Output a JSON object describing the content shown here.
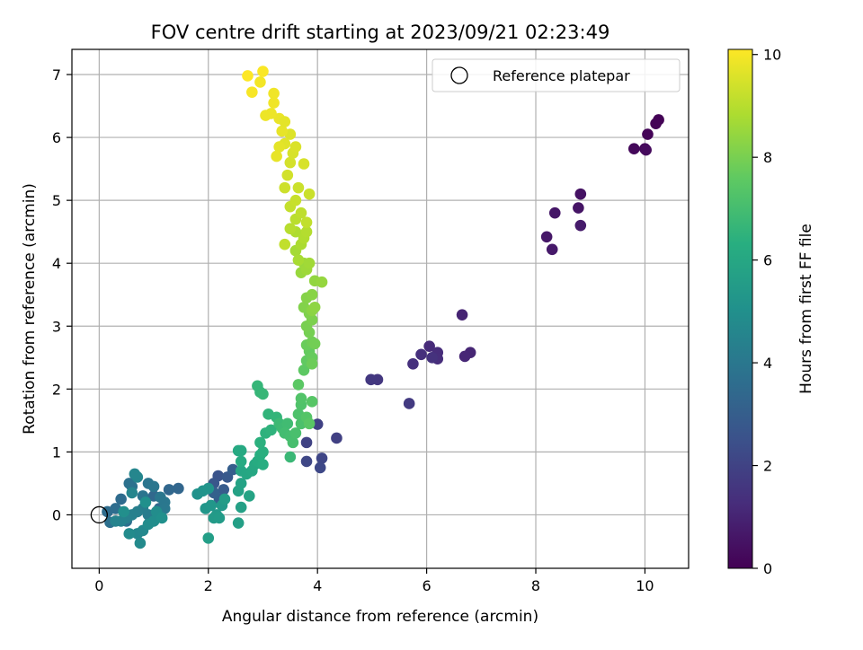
{
  "chart_data": {
    "type": "scatter",
    "title": "FOV centre drift starting at 2023/09/21 02:23:49",
    "xlabel": "Angular distance from reference (arcmin)",
    "ylabel": "Rotation from reference (arcmin)",
    "xlim": [
      -0.5,
      10.8
    ],
    "ylim": [
      -0.85,
      7.4
    ],
    "xticks": [
      0,
      2,
      4,
      6,
      8,
      10
    ],
    "yticks": [
      0,
      1,
      2,
      3,
      4,
      5,
      6,
      7
    ],
    "grid": true,
    "legend": {
      "placement": "top-right",
      "entries": [
        {
          "label": "Reference platepar",
          "marker": "open-circle"
        }
      ]
    },
    "reference_point": {
      "x": 0,
      "y": 0
    },
    "colorbar": {
      "label": "Hours from first FF file",
      "min": 0,
      "max": 10.1,
      "ticks": [
        0,
        2,
        4,
        6,
        8,
        10
      ],
      "colormap": "viridis"
    },
    "points": [
      [
        10.25,
        6.28,
        0.05
      ],
      [
        10.2,
        6.22,
        0.08
      ],
      [
        10.05,
        6.05,
        0.1
      ],
      [
        10.0,
        5.82,
        0.15
      ],
      [
        9.8,
        5.82,
        0.2
      ],
      [
        10.02,
        5.8,
        0.25
      ],
      [
        8.82,
        5.1,
        0.5
      ],
      [
        8.78,
        4.88,
        0.55
      ],
      [
        8.35,
        4.8,
        0.6
      ],
      [
        8.2,
        4.42,
        0.65
      ],
      [
        8.3,
        4.22,
        0.7
      ],
      [
        8.82,
        4.6,
        0.75
      ],
      [
        6.65,
        3.18,
        1.0
      ],
      [
        6.8,
        2.58,
        1.05
      ],
      [
        6.7,
        2.52,
        1.1
      ],
      [
        6.05,
        2.68,
        1.2
      ],
      [
        6.2,
        2.58,
        1.25
      ],
      [
        6.2,
        2.48,
        1.3
      ],
      [
        5.9,
        2.55,
        1.35
      ],
      [
        5.75,
        2.4,
        1.4
      ],
      [
        6.1,
        2.5,
        1.45
      ],
      [
        5.1,
        2.15,
        1.6
      ],
      [
        4.98,
        2.15,
        1.65
      ],
      [
        5.68,
        1.77,
        1.7
      ],
      [
        4.35,
        1.22,
        1.9
      ],
      [
        4.0,
        1.44,
        1.95
      ],
      [
        3.8,
        1.15,
        2.0
      ],
      [
        4.08,
        0.9,
        2.1
      ],
      [
        3.8,
        0.85,
        2.15
      ],
      [
        4.05,
        0.75,
        2.2
      ],
      [
        2.18,
        0.62,
        2.6
      ],
      [
        2.1,
        0.5,
        2.7
      ],
      [
        2.35,
        0.6,
        2.8
      ],
      [
        2.28,
        0.4,
        2.9
      ],
      [
        2.45,
        0.72,
        3.0
      ],
      [
        2.2,
        0.25,
        3.0
      ],
      [
        2.1,
        0.35,
        3.1
      ],
      [
        1.45,
        0.42,
        3.3
      ],
      [
        1.28,
        0.4,
        3.35
      ],
      [
        1.0,
        0.3,
        3.4
      ],
      [
        1.1,
        0.1,
        3.45
      ],
      [
        0.4,
        0.25,
        3.5
      ],
      [
        0.15,
        0.05,
        3.55
      ],
      [
        0.3,
        0.1,
        3.6
      ],
      [
        0.5,
        -0.1,
        3.65
      ],
      [
        0.2,
        -0.12,
        3.7
      ],
      [
        0.55,
        0.5,
        3.75
      ],
      [
        0.6,
        0.45,
        3.8
      ],
      [
        0.8,
        0.3,
        3.85
      ],
      [
        0.9,
        0.5,
        3.9
      ],
      [
        1.0,
        0.45,
        3.95
      ],
      [
        1.12,
        0.28,
        4.0
      ],
      [
        1.2,
        0.2,
        4.0
      ],
      [
        1.2,
        0.1,
        4.05
      ],
      [
        1.1,
        0.0,
        4.1
      ],
      [
        1.0,
        -0.05,
        4.15
      ],
      [
        0.9,
        0.0,
        4.2
      ],
      [
        0.8,
        0.1,
        4.25
      ],
      [
        0.7,
        0.05,
        4.3
      ],
      [
        0.6,
        0.0,
        4.35
      ],
      [
        0.5,
        -0.05,
        4.4
      ],
      [
        0.4,
        -0.1,
        4.45
      ],
      [
        0.3,
        -0.1,
        4.5
      ],
      [
        0.6,
        0.35,
        4.55
      ],
      [
        0.7,
        0.6,
        4.6
      ],
      [
        0.65,
        0.65,
        4.6
      ],
      [
        0.7,
        -0.3,
        4.65
      ],
      [
        0.8,
        -0.25,
        4.7
      ],
      [
        0.75,
        -0.45,
        4.75
      ],
      [
        0.55,
        -0.3,
        4.8
      ],
      [
        0.9,
        -0.15,
        4.85
      ],
      [
        1.0,
        -0.1,
        4.9
      ],
      [
        1.05,
        0.05,
        4.9
      ],
      [
        0.45,
        0.05,
        4.95
      ],
      [
        0.85,
        0.2,
        5.0
      ],
      [
        1.15,
        -0.05,
        5.0
      ],
      [
        1.8,
        0.33,
        5.1
      ],
      [
        1.9,
        0.38,
        5.15
      ],
      [
        2.0,
        0.42,
        5.2
      ],
      [
        1.95,
        0.1,
        5.25
      ],
      [
        2.05,
        0.15,
        5.3
      ],
      [
        2.15,
        0.0,
        5.35
      ],
      [
        2.25,
        0.15,
        5.4
      ],
      [
        2.1,
        -0.05,
        5.45
      ],
      [
        2.2,
        -0.05,
        5.5
      ],
      [
        2.3,
        0.25,
        5.55
      ],
      [
        2.0,
        -0.37,
        5.6
      ],
      [
        2.55,
        -0.13,
        5.65
      ],
      [
        2.6,
        0.12,
        5.7
      ],
      [
        2.55,
        0.38,
        5.75
      ],
      [
        2.6,
        0.5,
        5.8
      ],
      [
        2.75,
        0.3,
        5.85
      ],
      [
        2.6,
        0.7,
        5.9
      ],
      [
        2.7,
        0.65,
        5.95
      ],
      [
        2.8,
        0.7,
        6.0
      ],
      [
        2.85,
        0.8,
        6.05
      ],
      [
        2.55,
        1.02,
        6.1
      ],
      [
        2.6,
        1.02,
        6.1
      ],
      [
        2.6,
        0.85,
        6.15
      ],
      [
        2.9,
        0.85,
        6.2
      ],
      [
        3.0,
        0.8,
        6.25
      ],
      [
        2.95,
        0.95,
        6.3
      ],
      [
        3.0,
        1.0,
        6.35
      ],
      [
        2.95,
        1.15,
        6.4
      ],
      [
        3.05,
        1.3,
        6.45
      ],
      [
        3.15,
        1.35,
        6.5
      ],
      [
        3.1,
        1.6,
        6.55
      ],
      [
        3.25,
        1.55,
        6.6
      ],
      [
        2.9,
        2.05,
        6.65
      ],
      [
        2.95,
        1.95,
        6.65
      ],
      [
        3.0,
        1.92,
        6.7
      ],
      [
        3.5,
        0.92,
        6.75
      ],
      [
        3.3,
        1.45,
        6.8
      ],
      [
        3.35,
        1.38,
        6.85
      ],
      [
        3.45,
        1.45,
        6.9
      ],
      [
        3.4,
        1.3,
        6.95
      ],
      [
        3.5,
        1.25,
        7.0
      ],
      [
        3.55,
        1.15,
        7.05
      ],
      [
        3.6,
        1.3,
        7.1
      ],
      [
        3.7,
        1.45,
        7.15
      ],
      [
        3.65,
        1.6,
        7.2
      ],
      [
        3.7,
        1.75,
        7.25
      ],
      [
        3.7,
        1.85,
        7.3
      ],
      [
        3.8,
        1.55,
        7.35
      ],
      [
        3.9,
        1.8,
        7.4
      ],
      [
        3.85,
        1.45,
        7.45
      ],
      [
        3.65,
        2.07,
        7.5
      ],
      [
        3.75,
        2.3,
        7.55
      ],
      [
        3.8,
        2.45,
        7.6
      ],
      [
        3.85,
        2.6,
        7.65
      ],
      [
        3.9,
        2.5,
        7.7
      ],
      [
        3.8,
        2.7,
        7.75
      ],
      [
        3.9,
        2.4,
        7.8
      ],
      [
        3.9,
        2.75,
        7.85
      ],
      [
        3.95,
        2.72,
        7.9
      ],
      [
        3.85,
        2.9,
        7.95
      ],
      [
        3.8,
        3.0,
        8.0
      ],
      [
        3.9,
        3.1,
        8.05
      ],
      [
        3.85,
        3.2,
        8.1
      ],
      [
        3.75,
        3.3,
        8.15
      ],
      [
        3.8,
        3.45,
        8.2
      ],
      [
        3.9,
        3.5,
        8.25
      ],
      [
        3.9,
        3.25,
        8.3
      ],
      [
        3.95,
        3.3,
        8.35
      ],
      [
        3.95,
        3.72,
        8.4
      ],
      [
        4.08,
        3.7,
        8.45
      ],
      [
        3.7,
        3.85,
        8.5
      ],
      [
        3.75,
        4.0,
        8.55
      ],
      [
        3.8,
        3.9,
        8.6
      ],
      [
        3.85,
        4.0,
        8.65
      ],
      [
        3.6,
        4.2,
        8.7
      ],
      [
        3.65,
        4.05,
        8.75
      ],
      [
        3.7,
        4.3,
        8.8
      ],
      [
        3.6,
        4.5,
        8.85
      ],
      [
        3.75,
        4.4,
        8.9
      ],
      [
        3.8,
        4.5,
        8.95
      ],
      [
        3.5,
        4.55,
        9.0
      ],
      [
        3.6,
        4.7,
        9.05
      ],
      [
        3.7,
        4.8,
        9.1
      ],
      [
        3.8,
        4.65,
        9.15
      ],
      [
        3.4,
        4.3,
        9.15
      ],
      [
        3.5,
        4.9,
        9.2
      ],
      [
        3.6,
        5.0,
        9.25
      ],
      [
        3.65,
        5.2,
        9.3
      ],
      [
        3.85,
        5.1,
        9.3
      ],
      [
        3.4,
        5.2,
        9.35
      ],
      [
        3.45,
        5.4,
        9.4
      ],
      [
        3.5,
        5.6,
        9.45
      ],
      [
        3.55,
        5.75,
        9.5
      ],
      [
        3.75,
        5.58,
        9.5
      ],
      [
        3.6,
        5.85,
        9.55
      ],
      [
        3.5,
        6.05,
        9.6
      ],
      [
        3.4,
        5.9,
        9.65
      ],
      [
        3.3,
        5.85,
        9.7
      ],
      [
        3.25,
        5.7,
        9.75
      ],
      [
        3.35,
        6.1,
        9.75
      ],
      [
        3.3,
        6.3,
        9.8
      ],
      [
        3.15,
        6.38,
        9.85
      ],
      [
        3.05,
        6.35,
        9.85
      ],
      [
        3.2,
        6.7,
        9.9
      ],
      [
        2.95,
        6.88,
        9.95
      ],
      [
        2.8,
        6.72,
        10.0
      ],
      [
        3.0,
        7.05,
        10.05
      ],
      [
        2.72,
        6.98,
        10.1
      ],
      [
        3.2,
        6.55,
        9.9
      ],
      [
        3.4,
        6.25,
        9.7
      ]
    ]
  }
}
